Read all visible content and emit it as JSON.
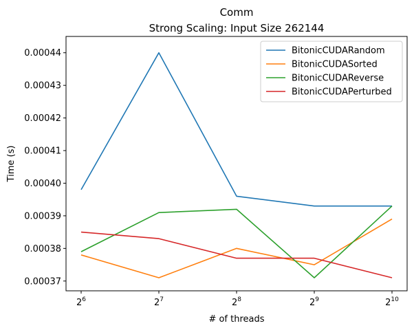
{
  "chart_data": {
    "type": "line",
    "title": "Comm",
    "subtitle": "Strong Scaling: Input Size 262144",
    "xlabel": "# of threads",
    "ylabel": "Time (s)",
    "x_scale": "log2",
    "x": [
      64,
      128,
      256,
      512,
      1024
    ],
    "x_tick_labels": [
      {
        "base": "2",
        "exp": "6"
      },
      {
        "base": "2",
        "exp": "7"
      },
      {
        "base": "2",
        "exp": "8"
      },
      {
        "base": "2",
        "exp": "9"
      },
      {
        "base": "2",
        "exp": "10"
      }
    ],
    "y_ticks": [
      "0.00037",
      "0.00038",
      "0.00039",
      "0.00040",
      "0.00041",
      "0.00042",
      "0.00043",
      "0.00044"
    ],
    "ylim": [
      0.000367,
      0.000445
    ],
    "grid": false,
    "legend_position": "top-right",
    "series": [
      {
        "name": "BitonicCUDARandom",
        "color": "#1f77b4",
        "values": [
          0.000398,
          0.00044,
          0.000396,
          0.000393,
          0.000393
        ]
      },
      {
        "name": "BitonicCUDASorted",
        "color": "#ff7f0e",
        "values": [
          0.000378,
          0.000371,
          0.00038,
          0.000375,
          0.000389
        ]
      },
      {
        "name": "BitonicCUDAReverse",
        "color": "#2ca02c",
        "values": [
          0.000379,
          0.000391,
          0.000392,
          0.000371,
          0.000393
        ]
      },
      {
        "name": "BitonicCUDAPerturbed",
        "color": "#d62728",
        "values": [
          0.000385,
          0.000383,
          0.000377,
          0.000377,
          0.000371
        ]
      }
    ]
  }
}
